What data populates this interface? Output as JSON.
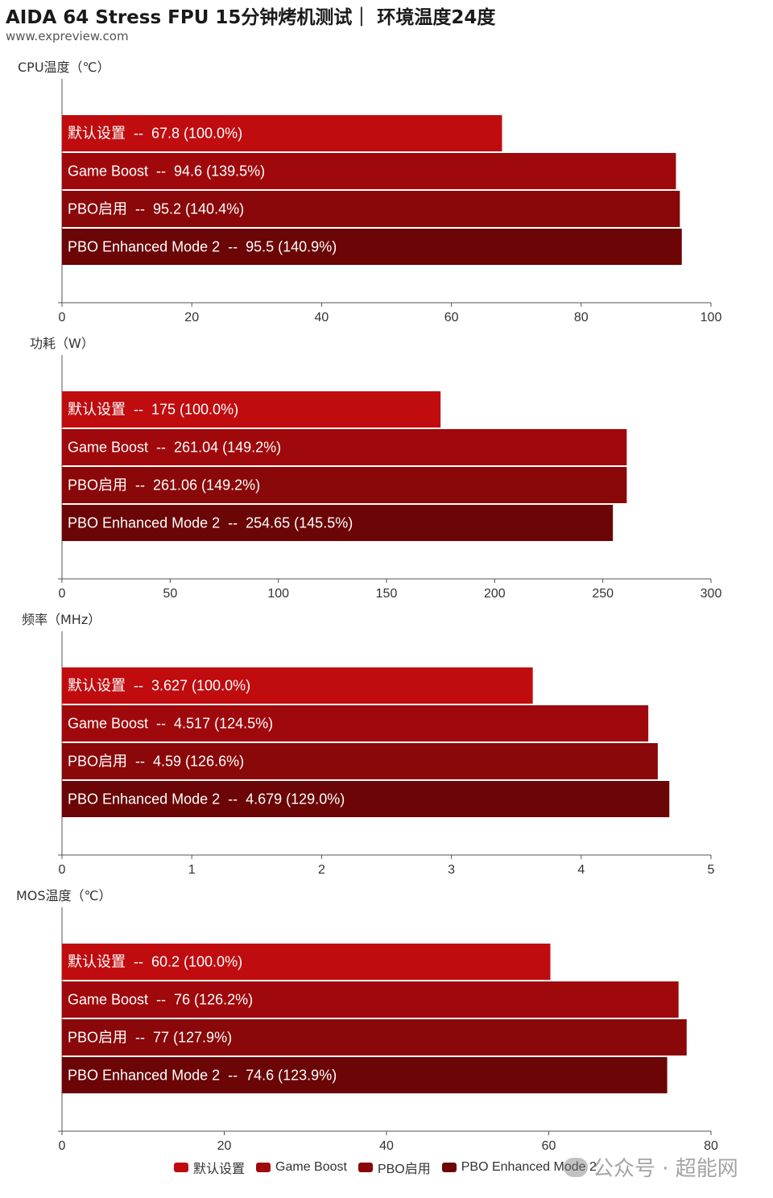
{
  "header": {
    "title": "AIDA 64 Stress FPU 15分钟烤机测试｜ 环境温度24度",
    "source": "www.expreview.com"
  },
  "colors": [
    "#c00c0f",
    "#a0090c",
    "#8a0809",
    "#6b0506"
  ],
  "legend": [
    "默认设置",
    "Game Boost",
    "PBO启用",
    "PBO Enhanced Mode 2"
  ],
  "watermark": {
    "text": "公众号 · 超能网",
    "icon": "wechat-icon"
  },
  "chart_data": [
    {
      "type": "bar",
      "orientation": "horizontal",
      "title": "CPU温度（℃）",
      "categories": [
        "默认设置",
        "Game Boost",
        "PBO启用",
        "PBO Enhanced Mode 2"
      ],
      "values": [
        67.8,
        94.6,
        95.2,
        95.5
      ],
      "percents": [
        "100.0%",
        "139.5%",
        "140.4%",
        "140.9%"
      ],
      "bar_labels": [
        "默认设置  --  67.8 (100.0%)",
        "Game Boost  --  94.6 (139.5%)",
        "PBO启用  --  95.2 (140.4%)",
        "PBO Enhanced Mode 2  --  95.5 (140.9%)"
      ],
      "xlim": [
        0,
        100
      ],
      "xticks": [
        0,
        20,
        40,
        60,
        80,
        100
      ]
    },
    {
      "type": "bar",
      "orientation": "horizontal",
      "title": "功耗（W）",
      "categories": [
        "默认设置",
        "Game Boost",
        "PBO启用",
        "PBO Enhanced Mode 2"
      ],
      "values": [
        175,
        261.04,
        261.06,
        254.65
      ],
      "percents": [
        "100.0%",
        "149.2%",
        "149.2%",
        "145.5%"
      ],
      "bar_labels": [
        "默认设置  --  175 (100.0%)",
        "Game Boost  --  261.04 (149.2%)",
        "PBO启用  --  261.06 (149.2%)",
        "PBO Enhanced Mode 2  --  254.65 (145.5%)"
      ],
      "xlim": [
        0,
        300
      ],
      "xticks": [
        0,
        50,
        100,
        150,
        200,
        250,
        300
      ]
    },
    {
      "type": "bar",
      "orientation": "horizontal",
      "title": "频率（MHz）",
      "categories": [
        "默认设置",
        "Game Boost",
        "PBO启用",
        "PBO Enhanced Mode 2"
      ],
      "values": [
        3.627,
        4.517,
        4.59,
        4.679
      ],
      "percents": [
        "100.0%",
        "124.5%",
        "126.6%",
        "129.0%"
      ],
      "bar_labels": [
        "默认设置  --  3.627 (100.0%)",
        "Game Boost  --  4.517 (124.5%)",
        "PBO启用  --  4.59 (126.6%)",
        "PBO Enhanced Mode 2  --  4.679 (129.0%)"
      ],
      "xlim": [
        0,
        5
      ],
      "xticks": [
        0,
        1,
        2,
        3,
        4,
        5
      ]
    },
    {
      "type": "bar",
      "orientation": "horizontal",
      "title": "MOS温度（℃）",
      "categories": [
        "默认设置",
        "Game Boost",
        "PBO启用",
        "PBO Enhanced Mode 2"
      ],
      "values": [
        60.2,
        76,
        77,
        74.6
      ],
      "percents": [
        "100.0%",
        "126.2%",
        "127.9%",
        "123.9%"
      ],
      "bar_labels": [
        "默认设置  --  60.2 (100.0%)",
        "Game Boost  --  76 (126.2%)",
        "PBO启用  --  77 (127.9%)",
        "PBO Enhanced Mode 2  --  74.6 (123.9%)"
      ],
      "xlim": [
        0,
        80
      ],
      "xticks": [
        0,
        20,
        40,
        60,
        80
      ]
    }
  ]
}
